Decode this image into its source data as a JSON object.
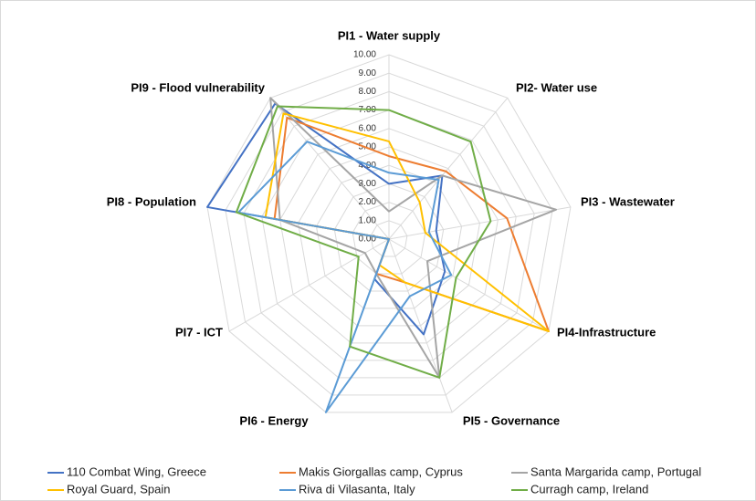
{
  "chart_data": {
    "type": "radar",
    "categories": [
      "PI1 - Water supply",
      "PI2- Water use",
      "PI3 - Wastewater",
      "PI4-Infrastructure",
      "PI5 - Governance",
      "PI6 - Energy",
      "PI7 - ICT",
      "PI8 - Population",
      "PI9 - Flood vulnerability"
    ],
    "ylim": [
      0,
      10
    ],
    "yticks": [
      {
        "value": 0,
        "label": "0.00"
      },
      {
        "value": 1,
        "label": "1.00"
      },
      {
        "value": 2,
        "label": "2.00"
      },
      {
        "value": 3,
        "label": "3.00"
      },
      {
        "value": 4,
        "label": "4.00"
      },
      {
        "value": 5,
        "label": "5.00"
      },
      {
        "value": 6,
        "label": "6.00"
      },
      {
        "value": 7,
        "label": "7.00"
      },
      {
        "value": 8,
        "label": "8.00"
      },
      {
        "value": 9,
        "label": "9.00"
      },
      {
        "value": 10,
        "label": "10.00"
      }
    ],
    "grid": true,
    "legend": "bottom",
    "series": [
      {
        "name": "110 Combat Wing, Greece",
        "color": "#4472c4",
        "values": [
          3.0,
          4.5,
          2.6,
          3.5,
          5.5,
          2.3,
          0,
          10,
          9.6
        ]
      },
      {
        "name": "Makis Giorgallas camp, Cyprus",
        "color": "#ed7d31",
        "values": [
          4.5,
          4.8,
          6.5,
          10,
          2.5,
          2.0,
          0,
          6.3,
          8.6
        ]
      },
      {
        "name": "Santa Margarida camp, Portugal",
        "color": "#a5a5a5",
        "values": [
          1.5,
          4.5,
          9.2,
          2.4,
          8.0,
          2.0,
          1.5,
          6.0,
          10
        ]
      },
      {
        "name": "Royal Guard, Spain",
        "color": "#ffc000",
        "values": [
          5.3,
          2.6,
          2.0,
          10,
          2.5,
          1.5,
          0,
          6.8,
          8.9
        ]
      },
      {
        "name": "Riva di Vilasanta, Italy",
        "color": "#5b9bd5",
        "values": [
          3.6,
          4.2,
          2.2,
          3.9,
          3.3,
          10,
          0,
          8.3,
          6.9
        ]
      },
      {
        "name": "Curragh camp, Ireland",
        "color": "#70ad47",
        "values": [
          7.0,
          6.9,
          5.6,
          4.2,
          8.0,
          6.2,
          1.9,
          8.4,
          9.4
        ]
      }
    ]
  }
}
